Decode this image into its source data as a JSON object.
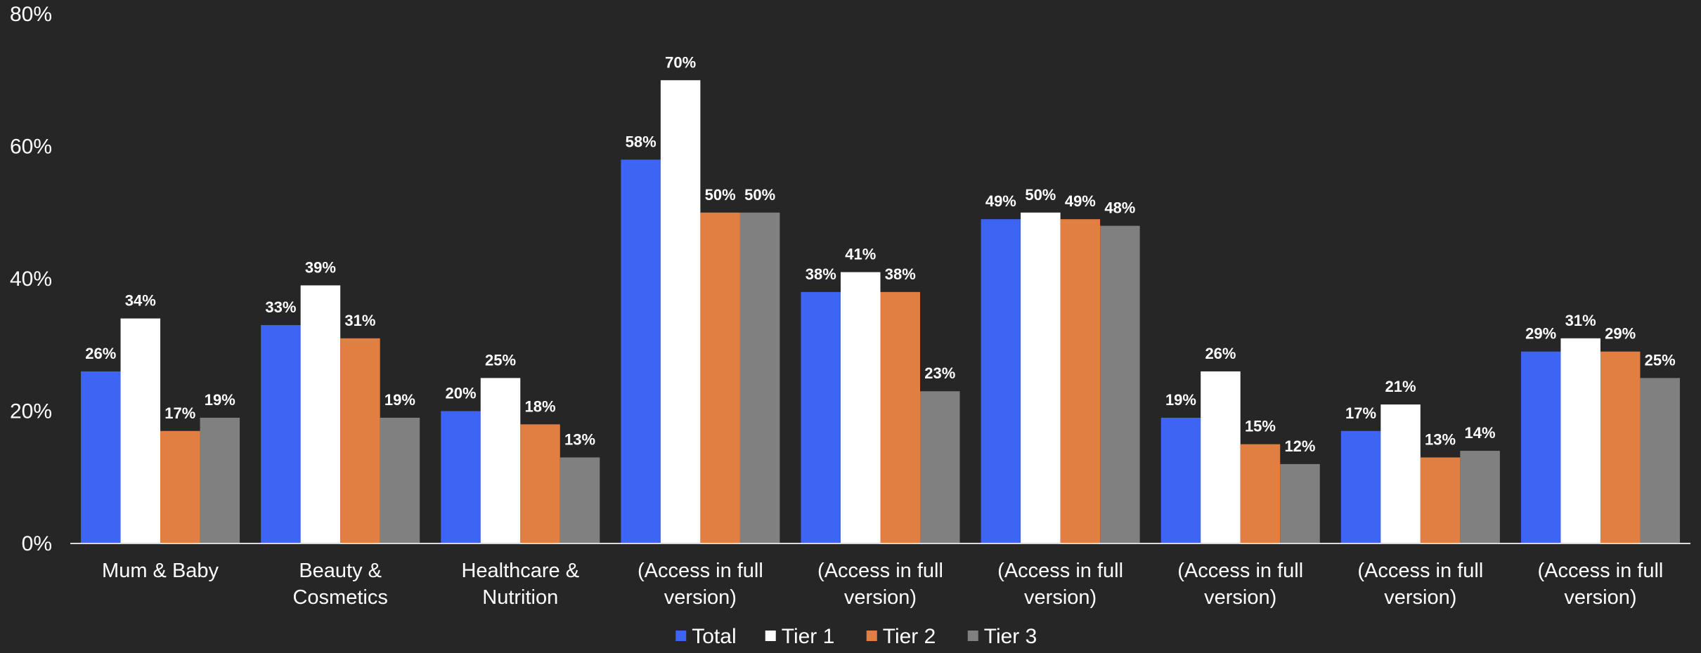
{
  "chart_data": {
    "type": "bar",
    "title": "",
    "xlabel": "",
    "ylabel": "",
    "ylim": [
      0,
      80
    ],
    "yticks": [
      "0%",
      "20%",
      "40%",
      "60%",
      "80%"
    ],
    "grid": false,
    "legend_position": "bottom",
    "categories": [
      [
        "Mum & Baby"
      ],
      [
        "Beauty &",
        "Cosmetics"
      ],
      [
        "Healthcare &",
        "Nutrition"
      ],
      [
        "(Access in full",
        "version)"
      ],
      [
        "(Access in full",
        "version)"
      ],
      [
        "(Access in full",
        "version)"
      ],
      [
        "(Access in full",
        "version)"
      ],
      [
        "(Access in full",
        "version)"
      ],
      [
        "(Access in full",
        "version)"
      ]
    ],
    "series": [
      {
        "name": "Total",
        "color": "#3e64f4",
        "values": [
          26,
          33,
          20,
          58,
          38,
          49,
          19,
          17,
          29
        ],
        "labels": [
          "26%",
          "33%",
          "20%",
          "58%",
          "38%",
          "49%",
          "19%",
          "17%",
          "29%"
        ]
      },
      {
        "name": "Tier 1",
        "color": "#ffffff",
        "values": [
          34,
          39,
          25,
          70,
          41,
          50,
          26,
          21,
          31
        ],
        "labels": [
          "34%",
          "39%",
          "25%",
          "70%",
          "41%",
          "50%",
          "26%",
          "21%",
          "31%"
        ]
      },
      {
        "name": "Tier 2",
        "color": "#e07f41",
        "values": [
          17,
          31,
          18,
          50,
          38,
          49,
          15,
          13,
          29
        ],
        "labels": [
          "17%",
          "31%",
          "18%",
          "50%",
          "38%",
          "49%",
          "15%",
          "13%",
          "29%"
        ]
      },
      {
        "name": "Tier 3",
        "color": "#808080",
        "values": [
          19,
          19,
          13,
          50,
          23,
          48,
          12,
          14,
          25
        ],
        "labels": [
          "19%",
          "19%",
          "13%",
          "50%",
          "23%",
          "48%",
          "12%",
          "14%",
          "25%"
        ]
      }
    ]
  }
}
